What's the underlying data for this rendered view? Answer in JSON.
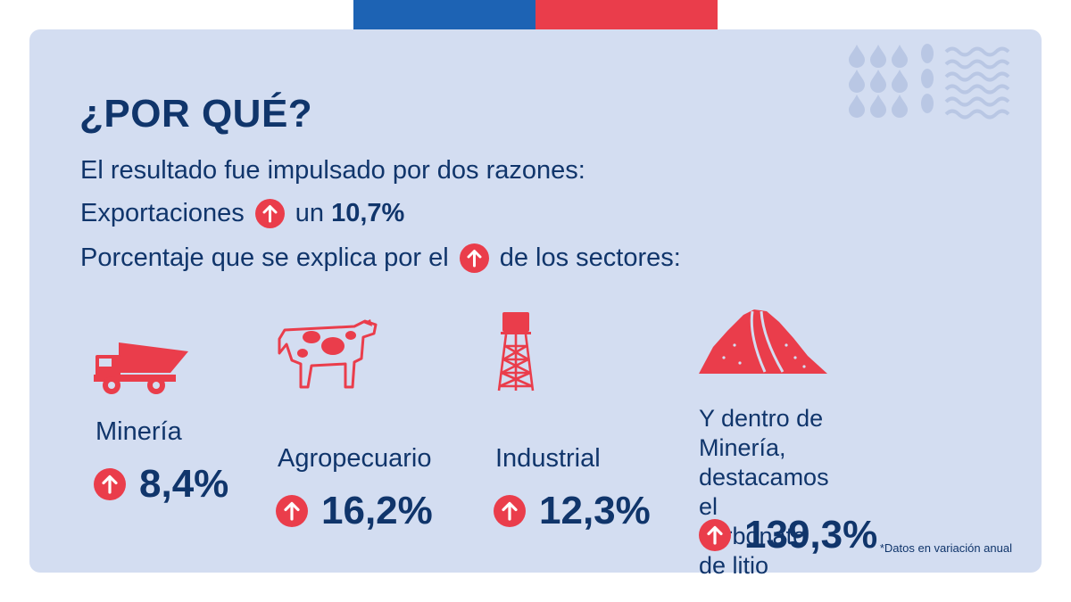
{
  "colors": {
    "primary": "#10356b",
    "accent": "#ea3d4b",
    "card": "#d3ddf1",
    "flag_blue": "#1d63b4",
    "flag_red": "#ea3d4b"
  },
  "title": "¿POR QUÉ?",
  "intro": "El resultado fue impulsado por dos razones:",
  "exports": {
    "prefix": "Exportaciones",
    "middle": "un",
    "value": "10,7%"
  },
  "sectors_line": {
    "prefix": "Porcentaje que se explica por el",
    "suffix": "de los sectores:"
  },
  "sectors": [
    {
      "name": "Minería",
      "value": "8,4%",
      "icon": "mining-truck-icon"
    },
    {
      "name": "Agropecuario",
      "value": "16,2%",
      "icon": "cow-icon"
    },
    {
      "name": "Industrial",
      "value": "12,3%",
      "icon": "water-tower-icon"
    }
  ],
  "litio": {
    "line1": "Y dentro de Minería,",
    "line2": "destacamos el carbonato",
    "line3": "de litio",
    "value": "139,3%",
    "icon": "salt-mountain-icon"
  },
  "footnote": "*Datos en variación anual"
}
